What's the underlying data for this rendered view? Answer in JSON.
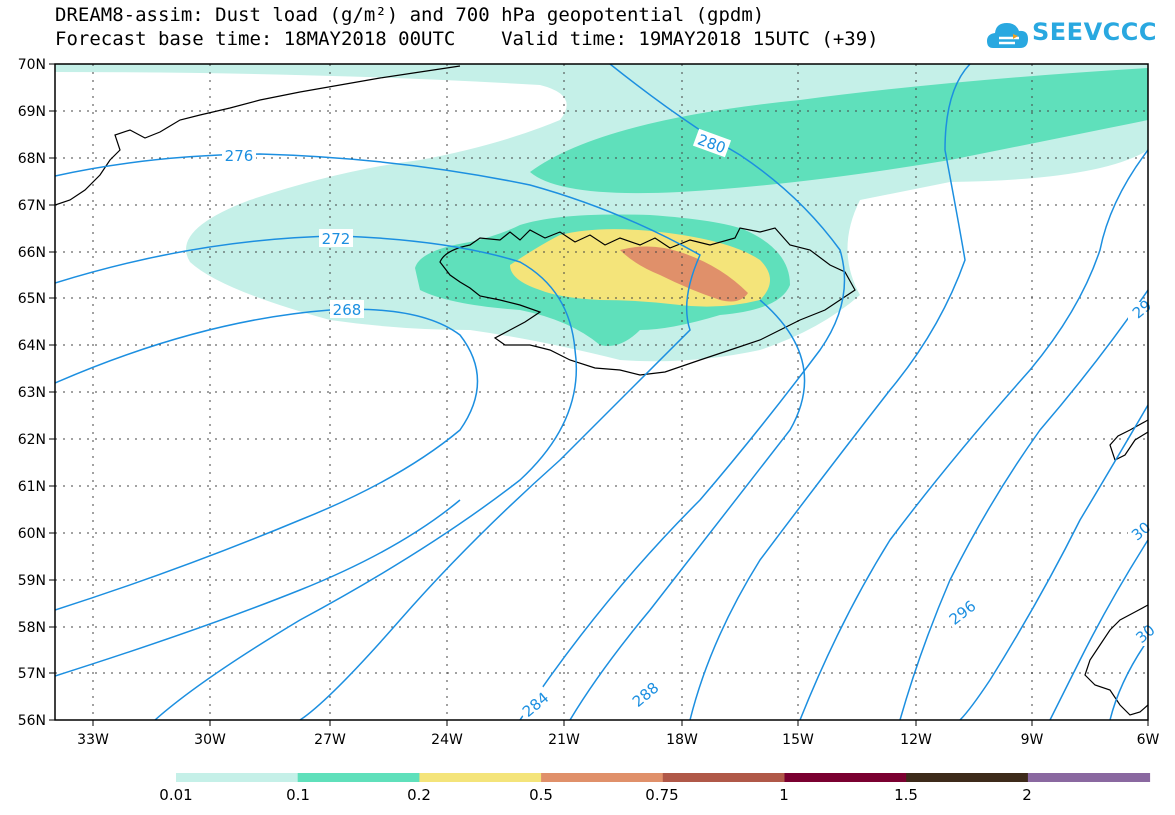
{
  "header": {
    "title_line1": "DREAM8-assim: Dust load (g/m²) and 700 hPa geopotential (gpdm)",
    "title_line2": "Forecast base time: 18MAY2018 00UTC    Valid time: 19MAY2018 15UTC (+39)",
    "logo_text": "SEEVCCC"
  },
  "map": {
    "lat_labels": [
      "70N",
      "69N",
      "68N",
      "67N",
      "66N",
      "65N",
      "64N",
      "63N",
      "62N",
      "61N",
      "60N",
      "59N",
      "58N",
      "57N",
      "56N"
    ],
    "lon_labels": [
      "33W",
      "30W",
      "27W",
      "24W",
      "21W",
      "18W",
      "15W",
      "12W",
      "9W",
      "6W"
    ],
    "contour_labels": [
      "276",
      "272",
      "268",
      "280",
      "284",
      "288",
      "296",
      "29",
      "30",
      "30"
    ]
  },
  "colorbar": {
    "labels": [
      "0.01",
      "0.1",
      "0.2",
      "0.5",
      "0.75",
      "1",
      "1.5",
      "2"
    ],
    "colors": [
      "#c5f0e8",
      "#5fe0bb",
      "#f4e47a",
      "#e0906a",
      "#b05848",
      "#7a0030",
      "#3d2a1a",
      "#8a68a0"
    ]
  }
}
